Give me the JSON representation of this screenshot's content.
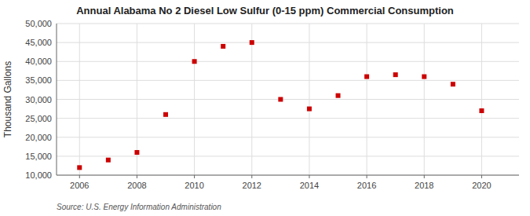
{
  "chart_data": {
    "type": "scatter",
    "title": "Annual Alabama No 2 Diesel Low Sulfur (0-15 ppm) Commercial Consumption",
    "ylabel": "Thousand Gallons",
    "source": "Source: U.S. Energy Information Administration",
    "x": [
      2006,
      2007,
      2008,
      2009,
      2010,
      2011,
      2012,
      2013,
      2014,
      2015,
      2016,
      2017,
      2018,
      2019,
      2020
    ],
    "values": [
      12000,
      14000,
      16000,
      26000,
      40000,
      44000,
      45000,
      30000,
      27500,
      31000,
      36000,
      36500,
      36000,
      34000,
      27000
    ],
    "color": "#cc0000",
    "marker": "square",
    "grid": true,
    "xlim": [
      2005.2,
      2021.3
    ],
    "xticks": [
      2006,
      2008,
      2010,
      2012,
      2014,
      2016,
      2018,
      2020
    ],
    "ylim": [
      10000,
      50000
    ],
    "yticks": [
      {
        "value": 10000,
        "label": "10,000"
      },
      {
        "value": 15000,
        "label": "15,000"
      },
      {
        "value": 20000,
        "label": "20,000"
      },
      {
        "value": 25000,
        "label": "25,000"
      },
      {
        "value": 30000,
        "label": "30,000"
      },
      {
        "value": 35000,
        "label": "35,000"
      },
      {
        "value": 40000,
        "label": "40,000"
      },
      {
        "value": 45000,
        "label": "45,000"
      },
      {
        "value": 50000,
        "label": "50,000"
      }
    ]
  }
}
